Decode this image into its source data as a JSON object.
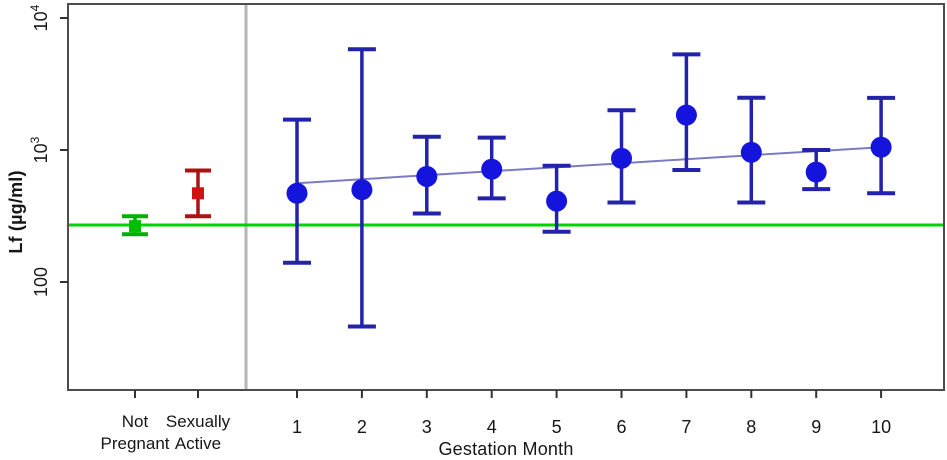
{
  "figure": {
    "background": "#ffffff",
    "frame_color": "#4d4d4d",
    "text_color": "#161616",
    "divider_color": "#b5b5b5"
  },
  "chart_data": {
    "type": "scatter",
    "subtype": "points-with-error-bars",
    "title": "",
    "xlabel": "Gestation Month",
    "ylabel": "Lf (µg/ml)",
    "yscale": "log",
    "ylim": [
      15,
      13000
    ],
    "grid": "off",
    "legend": "none",
    "yticks": [
      {
        "value": 100,
        "label": "100"
      },
      {
        "value": 1000,
        "label": "10^3",
        "base": "10",
        "exp": "3"
      },
      {
        "value": 10000,
        "label": "10^4",
        "base": "10",
        "exp": "4"
      }
    ],
    "reference_line": {
      "value": 270,
      "color": "#00d400",
      "orientation": "horizontal"
    },
    "divider": {
      "description": "vertical gray line separating control groups from gestation months",
      "color": "#b5b5b5"
    },
    "groups": [
      {
        "name": "Not Pregnant",
        "label_lines": [
          "Not",
          "Pregnant"
        ],
        "value": 265,
        "lo": 230,
        "hi": 315,
        "marker": "square",
        "marker_color": "#00bd00",
        "bar_color": "#00b000"
      },
      {
        "name": "Sexually Active",
        "label_lines": [
          "Sexually",
          "Active"
        ],
        "value": 470,
        "lo": 315,
        "hi": 700,
        "marker": "square",
        "marker_color": "#d01212",
        "bar_color": "#ab1212"
      }
    ],
    "series": [
      {
        "name": "Lf by gestation month",
        "marker": "circle",
        "marker_color": "#1414dd",
        "bar_color": "#2222aa",
        "x": [
          1,
          2,
          3,
          4,
          5,
          6,
          7,
          8,
          9,
          10
        ],
        "y": [
          470,
          500,
          630,
          715,
          410,
          865,
          1840,
          960,
          680,
          1050
        ],
        "lo": [
          140,
          46,
          330,
          430,
          240,
          400,
          705,
          400,
          505,
          470
        ],
        "hi": [
          1700,
          5800,
          1260,
          1240,
          760,
          2000,
          5300,
          2490,
          1000,
          2480
        ]
      }
    ],
    "trend_line": {
      "x1": 1,
      "y1": 560,
      "x2": 10,
      "y2": 1050,
      "color": "#7b7bc4"
    }
  }
}
